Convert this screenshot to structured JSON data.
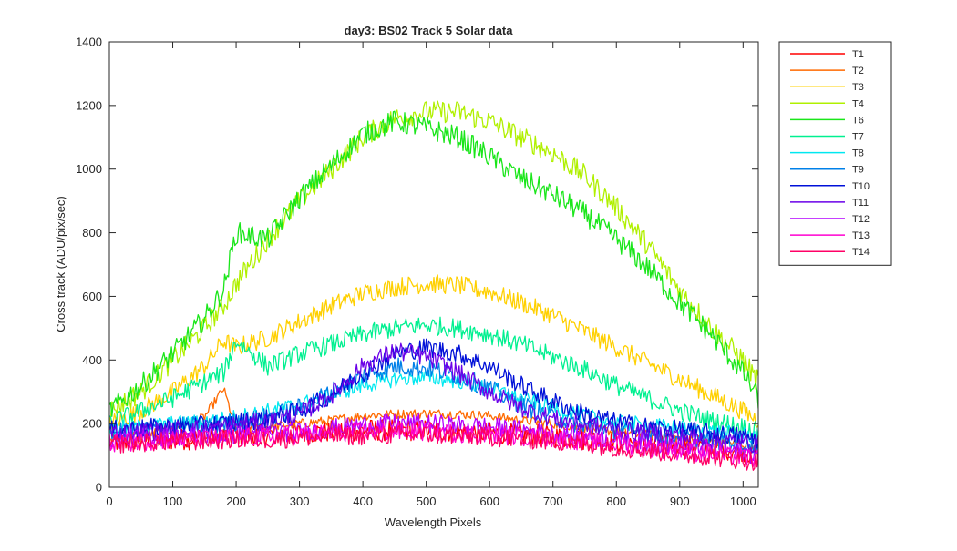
{
  "chart_data": {
    "type": "line",
    "title": "day3: BS02  Track 5 Solar data",
    "xlabel": "Wavelength Pixels",
    "ylabel": "Cross track (ADU/pix/sec)",
    "xlim": [
      0,
      1024
    ],
    "ylim": [
      0,
      1400
    ],
    "xticks": [
      0,
      100,
      200,
      300,
      400,
      500,
      600,
      700,
      800,
      900,
      1000
    ],
    "yticks": [
      0,
      200,
      400,
      600,
      800,
      1000,
      1200,
      1400
    ],
    "grid": false,
    "legend_position": "outside-top-right",
    "x_sample": [
      0,
      50,
      100,
      150,
      180,
      200,
      250,
      300,
      350,
      400,
      450,
      500,
      550,
      600,
      650,
      700,
      750,
      800,
      850,
      900,
      950,
      1000,
      1024
    ],
    "series": [
      {
        "name": "T1",
        "color": "#ff0000",
        "noise": 35,
        "values": [
          140,
          150,
          150,
          155,
          160,
          165,
          165,
          170,
          175,
          180,
          180,
          180,
          175,
          170,
          165,
          160,
          150,
          145,
          140,
          135,
          125,
          115,
          100
        ]
      },
      {
        "name": "T2",
        "color": "#ff6a00",
        "noise": 15,
        "values": [
          150,
          165,
          180,
          220,
          310,
          185,
          190,
          200,
          210,
          225,
          230,
          232,
          230,
          225,
          210,
          200,
          185,
          175,
          165,
          155,
          145,
          135,
          125
        ]
      },
      {
        "name": "T3",
        "color": "#ffd000",
        "noise": 30,
        "values": [
          200,
          240,
          300,
          380,
          460,
          440,
          470,
          520,
          570,
          610,
          630,
          640,
          635,
          615,
          580,
          540,
          490,
          440,
          390,
          340,
          290,
          240,
          210
        ]
      },
      {
        "name": "T4",
        "color": "#b0f000",
        "noise": 35,
        "values": [
          240,
          300,
          400,
          500,
          570,
          640,
          780,
          900,
          1000,
          1100,
          1160,
          1180,
          1180,
          1150,
          1100,
          1050,
          980,
          880,
          760,
          620,
          500,
          400,
          330
        ]
      },
      {
        "name": "T6",
        "color": "#1ae61a",
        "noise": 35,
        "values": [
          240,
          320,
          420,
          530,
          620,
          800,
          780,
          910,
          1010,
          1110,
          1150,
          1130,
          1100,
          1040,
          970,
          920,
          860,
          780,
          690,
          580,
          480,
          360,
          280
        ]
      },
      {
        "name": "T7",
        "color": "#00f090",
        "noise": 30,
        "values": [
          200,
          240,
          280,
          330,
          360,
          460,
          380,
          420,
          450,
          480,
          500,
          510,
          500,
          480,
          450,
          410,
          370,
          320,
          280,
          240,
          210,
          190,
          175
        ]
      },
      {
        "name": "T8",
        "color": "#00e8f0",
        "noise": 25,
        "values": [
          180,
          190,
          200,
          205,
          215,
          220,
          240,
          260,
          290,
          320,
          340,
          345,
          335,
          310,
          280,
          250,
          225,
          205,
          195,
          185,
          175,
          165,
          160
        ]
      },
      {
        "name": "T9",
        "color": "#0080e8",
        "noise": 30,
        "values": [
          170,
          180,
          190,
          195,
          200,
          205,
          220,
          250,
          300,
          350,
          380,
          375,
          350,
          310,
          260,
          220,
          195,
          180,
          170,
          160,
          150,
          140,
          135
        ]
      },
      {
        "name": "T10",
        "color": "#0010d8",
        "noise": 30,
        "values": [
          180,
          185,
          190,
          195,
          200,
          205,
          215,
          240,
          290,
          360,
          420,
          440,
          420,
          380,
          320,
          270,
          230,
          205,
          190,
          180,
          170,
          160,
          150
        ]
      },
      {
        "name": "T11",
        "color": "#6a00e8",
        "noise": 30,
        "values": [
          170,
          175,
          180,
          185,
          190,
          195,
          205,
          230,
          290,
          380,
          430,
          410,
          360,
          300,
          250,
          215,
          195,
          180,
          170,
          160,
          150,
          140,
          135
        ]
      },
      {
        "name": "T12",
        "color": "#b400ff",
        "noise": 30,
        "values": [
          150,
          155,
          160,
          160,
          165,
          165,
          170,
          175,
          185,
          195,
          200,
          200,
          195,
          190,
          180,
          170,
          160,
          150,
          140,
          130,
          120,
          110,
          100
        ]
      },
      {
        "name": "T13",
        "color": "#ff00d0",
        "noise": 30,
        "values": [
          140,
          145,
          150,
          150,
          155,
          155,
          160,
          165,
          170,
          175,
          175,
          175,
          170,
          165,
          160,
          155,
          145,
          135,
          125,
          115,
          105,
          95,
          90
        ]
      },
      {
        "name": "T14",
        "color": "#ff0066",
        "noise": 30,
        "values": [
          135,
          140,
          145,
          145,
          150,
          150,
          150,
          155,
          160,
          162,
          165,
          165,
          162,
          158,
          150,
          145,
          135,
          125,
          115,
          105,
          95,
          85,
          80
        ]
      }
    ]
  }
}
